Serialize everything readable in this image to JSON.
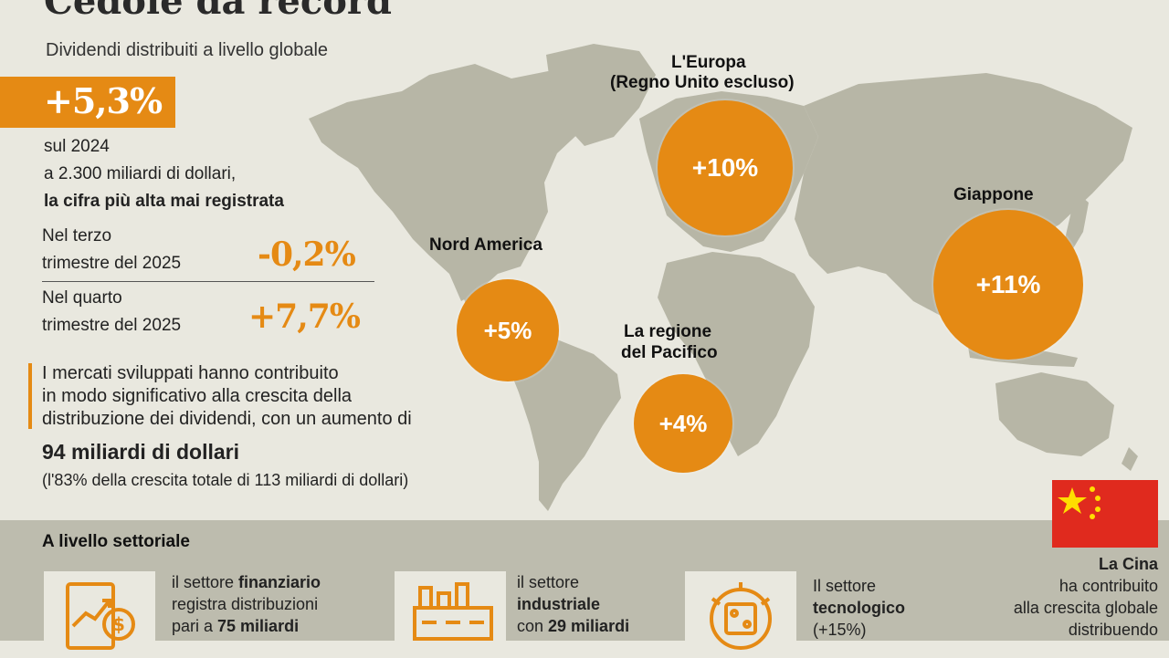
{
  "header": {
    "title": "Cedole da record",
    "subtitle": "Dividendi distribuiti a livello globale"
  },
  "summary": {
    "growth_badge": "+5,3%",
    "line1": "sul 2024",
    "line2": "a 2.300 miliardi di dollari,",
    "line3": "la cifra più alta mai registrata"
  },
  "quarters": [
    {
      "label_line1": "Nel terzo",
      "label_line2": "trimestre del 2025",
      "value": "-0,2%"
    },
    {
      "label_line1": "Nel quarto",
      "label_line2": "trimestre del 2025",
      "value": "+7,7%"
    }
  ],
  "markets": {
    "line1": "I mercati sviluppati hanno contribuito",
    "line2": "in modo significativo alla crescita della",
    "line3": "distribuzione dei dividendi, con un aumento di",
    "highlight": "94 miliardi di dollari",
    "note": "(l'83% della crescita totale di 113 miliardi di dollari)"
  },
  "regions": [
    {
      "name_line1": "Nord America",
      "name_line2": "",
      "value": "+5%"
    },
    {
      "name_line1": "L'Europa",
      "name_line2": "(Regno Unito escluso)",
      "value": "+10%"
    },
    {
      "name_line1": "La regione",
      "name_line2": "del Pacifico",
      "value": "+4%"
    },
    {
      "name_line1": "Giappone",
      "name_line2": "",
      "value": "+11%"
    }
  ],
  "sectors": {
    "title": "A livello settoriale",
    "items": [
      {
        "icon": "finance-chart-icon",
        "l1_pre": "il settore ",
        "l1_bold": "finanziario",
        "l2": "registra distribuzioni",
        "l3_pre": "pari a ",
        "l3_bold": "75 miliardi"
      },
      {
        "icon": "factory-icon",
        "l1_pre": "il settore",
        "l1_bold": "",
        "l2": "industriale",
        "l3_pre": "con ",
        "l3_bold": "29 miliardi"
      },
      {
        "icon": "tech-chip-icon",
        "l1_pre": "Il settore",
        "l1_bold": "",
        "l2": "tecnologico",
        "l3_pre": "(+15%)",
        "l3_bold": ""
      }
    ]
  },
  "china": {
    "title": "La Cina",
    "line2": "ha contribuito",
    "line3": "alla crescita globale",
    "line4": "distribuendo"
  },
  "colors": {
    "accent": "#e58a14",
    "map_land": "#b7b6a6",
    "background": "#e9e8df",
    "band": "#bdbcae"
  }
}
